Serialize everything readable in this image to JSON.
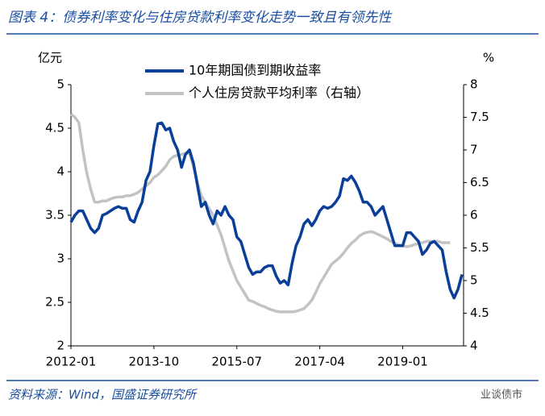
{
  "header": {
    "title": "图表 4：债券利率变化与住房贷款利率变化走势一致且有领先性"
  },
  "footer": {
    "source": "资料来源：Wind，国盛证券研究所",
    "watermark": "业谈债市"
  },
  "chart_data": {
    "type": "line",
    "ylabel": "亿元",
    "y2label": "%",
    "categories": [
      "2012-01",
      null,
      null,
      null,
      null,
      null,
      null,
      null,
      null,
      null,
      null,
      null,
      null,
      null,
      null,
      null,
      null,
      null,
      null,
      null,
      null,
      "2013-10",
      null,
      null,
      null,
      null,
      null,
      null,
      null,
      null,
      null,
      null,
      null,
      null,
      null,
      null,
      null,
      null,
      null,
      null,
      null,
      null,
      "2015-07",
      null,
      null,
      null,
      null,
      null,
      null,
      null,
      null,
      null,
      null,
      null,
      null,
      null,
      null,
      null,
      null,
      null,
      null,
      null,
      null,
      "2017-04",
      null,
      null,
      null,
      null,
      null,
      null,
      null,
      null,
      null,
      null,
      null,
      null,
      null,
      null,
      null,
      null,
      null,
      null,
      null,
      null,
      "2019-01",
      null,
      null,
      null,
      null,
      null,
      null,
      null,
      null,
      null,
      null,
      null,
      null,
      null,
      null,
      null
    ],
    "ylim": [
      2,
      5
    ],
    "yticks": [
      2,
      2.5,
      3,
      3.5,
      4,
      4.5,
      5
    ],
    "y2lim": [
      4,
      8
    ],
    "y2ticks": [
      4,
      4.5,
      5,
      5.5,
      6,
      6.5,
      7,
      7.5,
      8
    ],
    "legend": "upper center",
    "series": [
      {
        "name": "10年期国债到期收益率",
        "color": "#0a3f99",
        "values": [
          3.42,
          3.5,
          3.55,
          3.55,
          3.45,
          3.35,
          3.3,
          3.35,
          3.5,
          3.52,
          3.55,
          3.58,
          3.6,
          3.58,
          3.58,
          3.45,
          3.42,
          3.55,
          3.65,
          3.9,
          4.0,
          4.3,
          4.55,
          4.56,
          4.48,
          4.5,
          4.35,
          4.25,
          4.05,
          4.2,
          4.25,
          4.1,
          3.85,
          3.6,
          3.65,
          3.5,
          3.4,
          3.55,
          3.5,
          3.6,
          3.5,
          3.45,
          3.25,
          3.2,
          3.05,
          2.9,
          2.82,
          2.85,
          2.85,
          2.9,
          2.92,
          2.92,
          2.8,
          2.72,
          2.75,
          2.7,
          2.95,
          3.15,
          3.25,
          3.4,
          3.45,
          3.38,
          3.45,
          3.55,
          3.6,
          3.58,
          3.6,
          3.65,
          3.72,
          3.92,
          3.9,
          3.95,
          3.88,
          3.78,
          3.65,
          3.65,
          3.6,
          3.5,
          3.55,
          3.6,
          3.45,
          3.3,
          3.15,
          3.15,
          3.15,
          3.3,
          3.3,
          3.25,
          3.2,
          3.05,
          3.1,
          3.18,
          3.2,
          3.15,
          3.1,
          2.85,
          2.65,
          2.55,
          2.65,
          2.82
        ]
      },
      {
        "name": "个人住房贷款平均利率（右轴）",
        "color": "#c3c3c3",
        "axis": "y2",
        "values": [
          7.55,
          7.5,
          7.42,
          7.0,
          6.65,
          6.4,
          6.2,
          6.2,
          6.22,
          6.22,
          6.25,
          6.27,
          6.28,
          6.28,
          6.3,
          6.3,
          6.32,
          6.35,
          6.4,
          6.45,
          6.5,
          6.58,
          6.62,
          6.68,
          6.75,
          6.85,
          6.9,
          6.92,
          6.93,
          6.95,
          6.95,
          6.75,
          6.5,
          6.3,
          6.2,
          6.1,
          6.0,
          5.85,
          5.7,
          5.5,
          5.3,
          5.15,
          5.0,
          4.9,
          4.8,
          4.7,
          4.68,
          4.65,
          4.62,
          4.6,
          4.57,
          4.55,
          4.53,
          4.52,
          4.52,
          4.52,
          4.52,
          4.53,
          4.55,
          4.57,
          4.63,
          4.7,
          4.82,
          4.95,
          5.05,
          5.15,
          5.25,
          5.3,
          5.35,
          5.42,
          5.5,
          5.57,
          5.62,
          5.68,
          5.72,
          5.74,
          5.75,
          5.73,
          5.7,
          5.67,
          5.64,
          5.6,
          5.57,
          5.55,
          5.53,
          5.52,
          5.53,
          5.55,
          5.57,
          5.58,
          5.6,
          5.6,
          5.6,
          5.6,
          5.58,
          5.58,
          5.58,
          null,
          null,
          null
        ]
      }
    ]
  }
}
